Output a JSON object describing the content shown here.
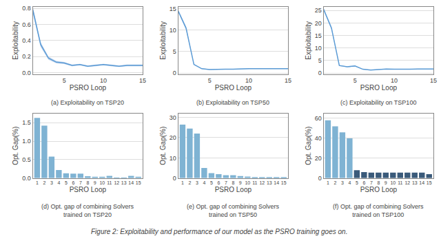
{
  "title": "Figure 2: Exploitability and performance of our model as the PSRO training goes on.",
  "chart_data": [
    {
      "type": "line",
      "title": "(a) Exploitability on TSP20",
      "xlabel": "PSRO Loop",
      "ylabel": "Exploitability",
      "x": [
        1,
        2,
        3,
        4,
        5,
        6,
        7,
        8,
        9,
        10,
        11,
        12,
        13,
        14,
        15
      ],
      "values": [
        0.78,
        0.35,
        0.18,
        0.13,
        0.12,
        0.09,
        0.1,
        0.08,
        0.09,
        0.1,
        0.09,
        0.08,
        0.09,
        0.09,
        0.09
      ],
      "color": "#5b9bd5",
      "band": {
        "lower": [
          0.74,
          0.32,
          0.16,
          0.115,
          0.108,
          0.08,
          0.09,
          0.07,
          0.08,
          0.09,
          0.08,
          0.07,
          0.08,
          0.08,
          0.08
        ],
        "upper": [
          0.82,
          0.38,
          0.2,
          0.145,
          0.132,
          0.1,
          0.11,
          0.09,
          0.1,
          0.11,
          0.1,
          0.09,
          0.1,
          0.1,
          0.1
        ],
        "color": "#aec8e8"
      },
      "xlim": [
        1,
        15
      ],
      "xticks": [
        5,
        10,
        15
      ],
      "ylim": [
        -0.02,
        0.82
      ],
      "yticks": [
        {
          "value": 0,
          "label": "0.0"
        },
        0.2,
        0.4,
        0.6,
        0.8
      ],
      "grid": "y"
    },
    {
      "type": "line",
      "title": "(b) Exploitability on TSP50",
      "xlabel": "PSRO Loop",
      "ylabel": "Exploitability",
      "x": [
        1,
        2,
        3,
        4,
        5,
        6,
        7,
        8,
        9,
        10,
        11,
        12,
        13,
        14,
        15
      ],
      "values": [
        14.5,
        10.5,
        2.0,
        1.0,
        0.8,
        0.9,
        0.9,
        0.9,
        1.0,
        1.0,
        1.0,
        1.0,
        1.0,
        1.0,
        1.0
      ],
      "color": "#5b9bd5",
      "band": {
        "lower": [
          14.2,
          10.1,
          1.85,
          0.92,
          0.73,
          0.83,
          0.83,
          0.83,
          0.93,
          0.93,
          0.93,
          0.93,
          0.93,
          0.93,
          0.93
        ],
        "upper": [
          14.8,
          10.9,
          2.15,
          1.08,
          0.87,
          0.97,
          0.97,
          0.97,
          1.07,
          1.07,
          1.07,
          1.07,
          1.07,
          1.07,
          1.07
        ],
        "color": "#aec8e8"
      },
      "xlim": [
        1,
        15
      ],
      "xticks": [
        5,
        10,
        15
      ],
      "ylim": [
        -0.3,
        15.5
      ],
      "yticks": [
        0,
        5,
        10,
        15
      ],
      "grid": "y"
    },
    {
      "type": "line",
      "title": "(c) Exploitability on TSP100",
      "xlabel": "PSRO Loop",
      "ylabel": "Exploitability",
      "x": [
        1,
        2,
        3,
        4,
        5,
        6,
        7,
        8,
        9,
        10,
        11,
        12,
        13,
        14,
        15
      ],
      "values": [
        25.5,
        18.0,
        3.0,
        2.5,
        2.8,
        1.5,
        1.2,
        1.5,
        1.6,
        1.5,
        1.4,
        1.5,
        1.6,
        1.6,
        1.6
      ],
      "color": "#5b9bd5",
      "band": {
        "lower": [
          25.0,
          17.4,
          2.8,
          2.35,
          2.65,
          1.4,
          1.1,
          1.4,
          1.5,
          1.4,
          1.3,
          1.4,
          1.5,
          1.5,
          1.5
        ],
        "upper": [
          26.0,
          18.6,
          3.2,
          2.65,
          2.95,
          1.6,
          1.3,
          1.6,
          1.7,
          1.6,
          1.5,
          1.6,
          1.7,
          1.7,
          1.7
        ],
        "color": "#aec8e8"
      },
      "xlim": [
        1,
        15
      ],
      "xticks": [
        5,
        10,
        15
      ],
      "ylim": [
        -0.5,
        26.5
      ],
      "yticks": [
        0,
        5,
        10,
        15,
        20,
        25
      ],
      "grid": "y"
    },
    {
      "type": "bar",
      "title": "(d) Opt. gap of combining Solvers\ntrained on TSP20",
      "xlabel": "PSRO Loop",
      "ylabel": "Opt. Gap(%)",
      "x": [
        1,
        2,
        3,
        4,
        5,
        6,
        7,
        8,
        9,
        10,
        11,
        12,
        13,
        14,
        15
      ],
      "values": [
        1.63,
        1.42,
        0.58,
        0.22,
        0.13,
        0.12,
        0.12,
        0.05,
        0.04,
        0.04,
        0.06,
        0.02,
        0.01,
        0.06,
        0.04
      ],
      "color": "#7fb3d3",
      "xlim": [
        0.4,
        15.6
      ],
      "xticks": [
        1,
        2,
        3,
        4,
        5,
        6,
        7,
        8,
        9,
        10,
        11,
        12,
        13,
        14,
        15
      ],
      "ylim": [
        0,
        1.75
      ],
      "yticks": [
        {
          "value": 0,
          "label": "0.0"
        },
        0.5,
        {
          "value": 1,
          "label": "1.0"
        },
        1.5
      ],
      "grid": "y"
    },
    {
      "type": "bar",
      "title": "(e) Opt. gap of combining Solvers\ntrained on TSP50",
      "xlabel": "PSRO Loop",
      "ylabel": "Opt. Gap(%)",
      "x": [
        1,
        2,
        3,
        4,
        5,
        6,
        7,
        8,
        9,
        10,
        11,
        12,
        13,
        14,
        15
      ],
      "values": [
        26.5,
        24.5,
        22.0,
        5.0,
        2.5,
        2.0,
        1.5,
        1.5,
        1.0,
        0.8,
        0.5,
        0.5,
        0.5,
        0.5,
        0.5
      ],
      "color": "#7fb3d3",
      "xlim": [
        0.4,
        15.6
      ],
      "xticks": [
        1,
        2,
        3,
        4,
        5,
        6,
        7,
        8,
        9,
        10,
        11,
        12,
        13,
        14,
        15
      ],
      "ylim": [
        0,
        32
      ],
      "yticks": [
        0,
        10,
        20,
        30
      ],
      "grid": "y"
    },
    {
      "type": "bar",
      "title": "(f) Opt. gap of combining Solvers\ntrained on TSP100",
      "xlabel": "PSRO Loop",
      "ylabel": "Opt. Gap(%)",
      "x": [
        1,
        2,
        3,
        4,
        5,
        6,
        7,
        8,
        9,
        10,
        11,
        12,
        13,
        14,
        15
      ],
      "values": [
        58.0,
        52.0,
        46.0,
        40.0,
        8.0,
        6.0,
        5.5,
        5.5,
        5.5,
        5.5,
        5.5,
        5.5,
        5.5,
        5.5,
        4.0
      ],
      "colors": [
        "#7fb3d3",
        "#7fb3d3",
        "#7fb3d3",
        "#7fb3d3",
        "#3a5a7a",
        "#3a5a7a",
        "#3a5a7a",
        "#3a5a7a",
        "#3a5a7a",
        "#3a5a7a",
        "#3a5a7a",
        "#3a5a7a",
        "#3a5a7a",
        "#3a5a7a",
        "#3a5a7a"
      ],
      "xlim": [
        0.4,
        15.6
      ],
      "xticks": [
        1,
        2,
        3,
        4,
        5,
        6,
        7,
        8,
        9,
        10,
        11,
        12,
        13,
        14,
        15
      ],
      "ylim": [
        0,
        65
      ],
      "yticks": [
        0,
        20,
        40,
        60
      ],
      "grid": "y"
    }
  ]
}
